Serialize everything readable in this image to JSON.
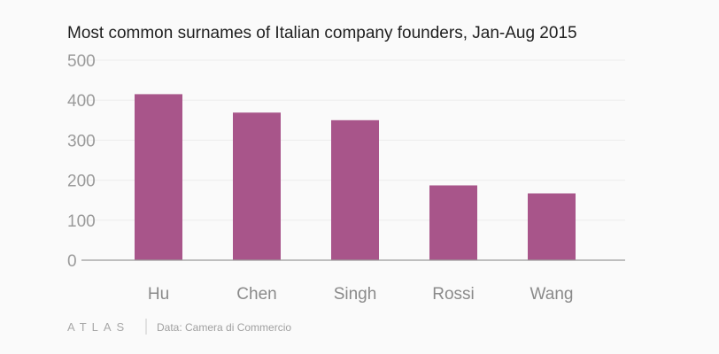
{
  "chart_data": {
    "type": "bar",
    "title": "Most common surnames of Italian company founders, Jan-Aug 2015",
    "categories": [
      "Hu",
      "Chen",
      "Singh",
      "Rossi",
      "Wang"
    ],
    "values": [
      415,
      369,
      350,
      187,
      167
    ],
    "ylim": [
      0,
      500
    ],
    "yticks": [
      0,
      100,
      200,
      300,
      400,
      500
    ],
    "grid": true,
    "bar_color": "#a8558a"
  },
  "footer": {
    "logo": "ATLAS",
    "source": "Data: Camera di Commercio"
  }
}
